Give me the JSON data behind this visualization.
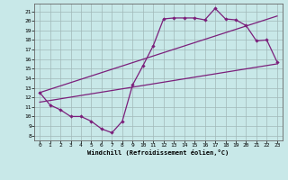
{
  "xlabel": "Windchill (Refroidissement éolien,°C)",
  "bg_color": "#c8e8e8",
  "line_color": "#7b1f7b",
  "grid_color": "#a0b8b8",
  "xlim_min": -0.5,
  "xlim_max": 23.5,
  "ylim_min": 7.5,
  "ylim_max": 21.8,
  "xticks": [
    0,
    1,
    2,
    3,
    4,
    5,
    6,
    7,
    8,
    9,
    10,
    11,
    12,
    13,
    14,
    15,
    16,
    17,
    18,
    19,
    20,
    21,
    22,
    23
  ],
  "yticks": [
    8,
    9,
    10,
    11,
    12,
    13,
    14,
    15,
    16,
    17,
    18,
    19,
    20,
    21
  ],
  "line1_x": [
    0,
    1,
    2,
    3,
    4,
    5,
    6,
    7,
    8,
    9,
    10,
    11,
    12,
    13,
    14,
    15,
    16,
    17,
    18,
    19,
    20,
    21,
    22,
    23
  ],
  "line1_y": [
    12.5,
    11.2,
    10.7,
    10.0,
    10.0,
    9.5,
    8.7,
    8.3,
    9.5,
    13.3,
    15.3,
    17.4,
    20.2,
    20.3,
    20.3,
    20.3,
    20.1,
    21.3,
    20.2,
    20.1,
    19.5,
    17.9,
    18.0,
    15.7
  ],
  "line2_x": [
    0,
    23
  ],
  "line2_y": [
    11.5,
    15.5
  ],
  "line3_x": [
    0,
    23
  ],
  "line3_y": [
    12.5,
    20.5
  ],
  "markersize": 2.2,
  "linewidth": 0.9
}
